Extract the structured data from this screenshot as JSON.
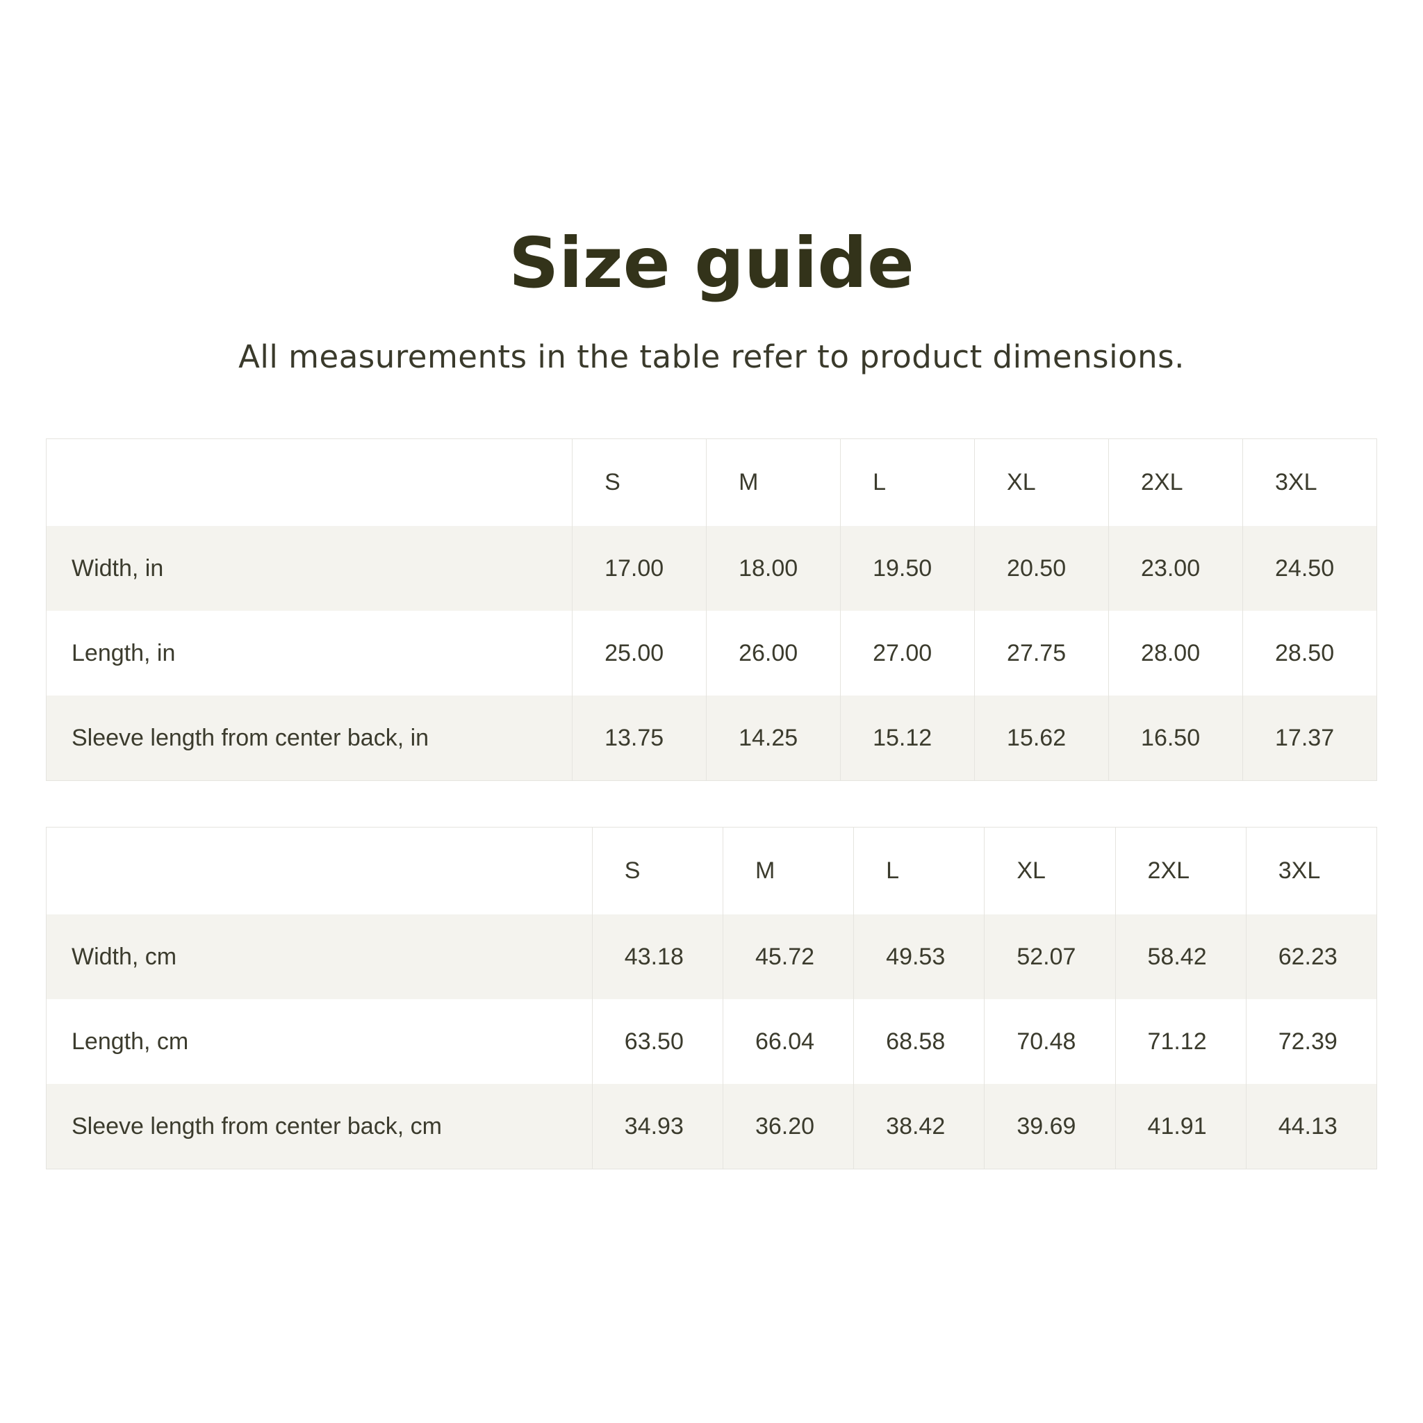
{
  "page": {
    "title": "Size guide",
    "subtitle": "All measurements in the table refer to product dimensions."
  },
  "colors": {
    "page_bg": "#ffffff",
    "title_text": "#33331a",
    "body_text": "#3b3b2d",
    "row_alt_bg": "#f4f3ee",
    "table_border": "#e5e4df"
  },
  "tables": [
    {
      "id": "inches",
      "sizes": [
        "S",
        "M",
        "L",
        "XL",
        "2XL",
        "3XL"
      ],
      "rows": [
        {
          "label": "Width, in",
          "values": [
            "17.00",
            "18.00",
            "19.50",
            "20.50",
            "23.00",
            "24.50"
          ]
        },
        {
          "label": "Length, in",
          "values": [
            "25.00",
            "26.00",
            "27.00",
            "27.75",
            "28.00",
            "28.50"
          ]
        },
        {
          "label": "Sleeve length from center back, in",
          "values": [
            "13.75",
            "14.25",
            "15.12",
            "15.62",
            "16.50",
            "17.37"
          ]
        }
      ]
    },
    {
      "id": "centimeters",
      "sizes": [
        "S",
        "M",
        "L",
        "XL",
        "2XL",
        "3XL"
      ],
      "rows": [
        {
          "label": "Width, cm",
          "values": [
            "43.18",
            "45.72",
            "49.53",
            "52.07",
            "58.42",
            "62.23"
          ]
        },
        {
          "label": "Length, cm",
          "values": [
            "63.50",
            "66.04",
            "68.58",
            "70.48",
            "71.12",
            "72.39"
          ]
        },
        {
          "label": "Sleeve length from center back, cm",
          "values": [
            "34.93",
            "36.20",
            "38.42",
            "39.69",
            "41.91",
            "44.13"
          ]
        }
      ]
    }
  ]
}
